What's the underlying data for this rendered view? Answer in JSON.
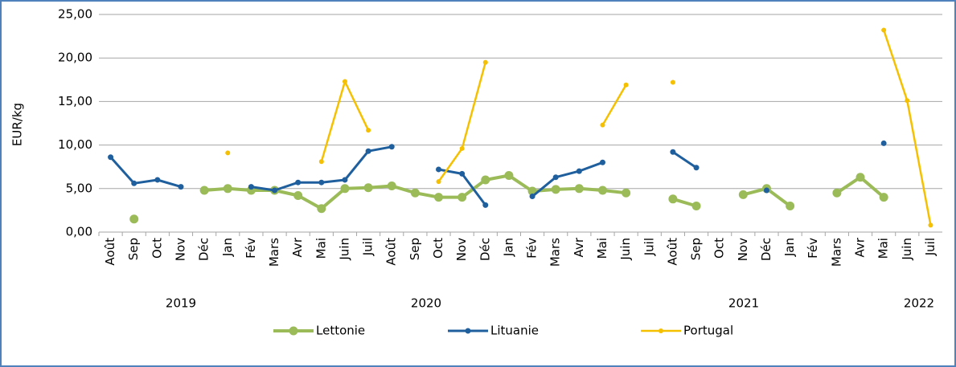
{
  "chart_data": {
    "type": "line",
    "y_label": "EUR/kg",
    "categories": [
      "Août",
      "Sep",
      "Oct",
      "Nov",
      "Déc",
      "Jan",
      "Fév",
      "Mars",
      "Avr",
      "Mai",
      "Juin",
      "Juil",
      "Août",
      "Sep",
      "Oct",
      "Nov",
      "Déc",
      "Jan",
      "Fév",
      "Mars",
      "Avr",
      "Mai",
      "Juin",
      "Juil",
      "Août",
      "Sep",
      "Oct",
      "Nov",
      "Déc",
      "Jan",
      "Fév",
      "Mars",
      "Avr",
      "Mai",
      "Juin",
      "Juil"
    ],
    "years": [
      "2019",
      "2020",
      "2021",
      "2022"
    ],
    "ylim": [
      0,
      25
    ],
    "yticks": [
      {
        "value": 0,
        "label": "0,00"
      },
      {
        "value": 5,
        "label": "5,00"
      },
      {
        "value": 10,
        "label": "10,00"
      },
      {
        "value": 15,
        "label": "15,00"
      },
      {
        "value": 20,
        "label": "20,00"
      },
      {
        "value": 25,
        "label": "25,00"
      }
    ],
    "grid": true,
    "legend": "bottom",
    "series": [
      {
        "name": "Lettonie",
        "color": "#9bbb59",
        "values": [
          null,
          1.5,
          null,
          null,
          4.8,
          5.0,
          4.8,
          4.8,
          4.2,
          2.7,
          5.0,
          5.1,
          5.3,
          4.5,
          4.0,
          4.0,
          6.0,
          6.5,
          4.7,
          4.9,
          5.0,
          4.8,
          4.5,
          null,
          3.8,
          3.0,
          null,
          4.3,
          5.0,
          3.0,
          null,
          4.5,
          6.3,
          4.0,
          null,
          null
        ]
      },
      {
        "name": "Lituanie",
        "color": "#1f5f9e",
        "values": [
          8.6,
          5.6,
          6.0,
          5.2,
          null,
          null,
          5.2,
          4.8,
          5.7,
          5.7,
          6.0,
          9.3,
          9.8,
          null,
          7.2,
          6.7,
          3.1,
          null,
          4.1,
          6.3,
          7.0,
          8.0,
          null,
          null,
          9.2,
          7.4,
          null,
          null,
          4.8,
          null,
          null,
          null,
          null,
          10.2,
          null,
          null
        ]
      },
      {
        "name": "Portugal",
        "color": "#f5c000",
        "values": [
          null,
          null,
          null,
          null,
          null,
          9.1,
          null,
          null,
          null,
          8.1,
          17.3,
          11.7,
          null,
          null,
          5.8,
          9.6,
          19.5,
          null,
          null,
          null,
          null,
          12.3,
          16.9,
          null,
          17.2,
          null,
          null,
          null,
          null,
          null,
          null,
          null,
          null,
          23.2,
          15.1,
          0.8
        ]
      }
    ]
  }
}
